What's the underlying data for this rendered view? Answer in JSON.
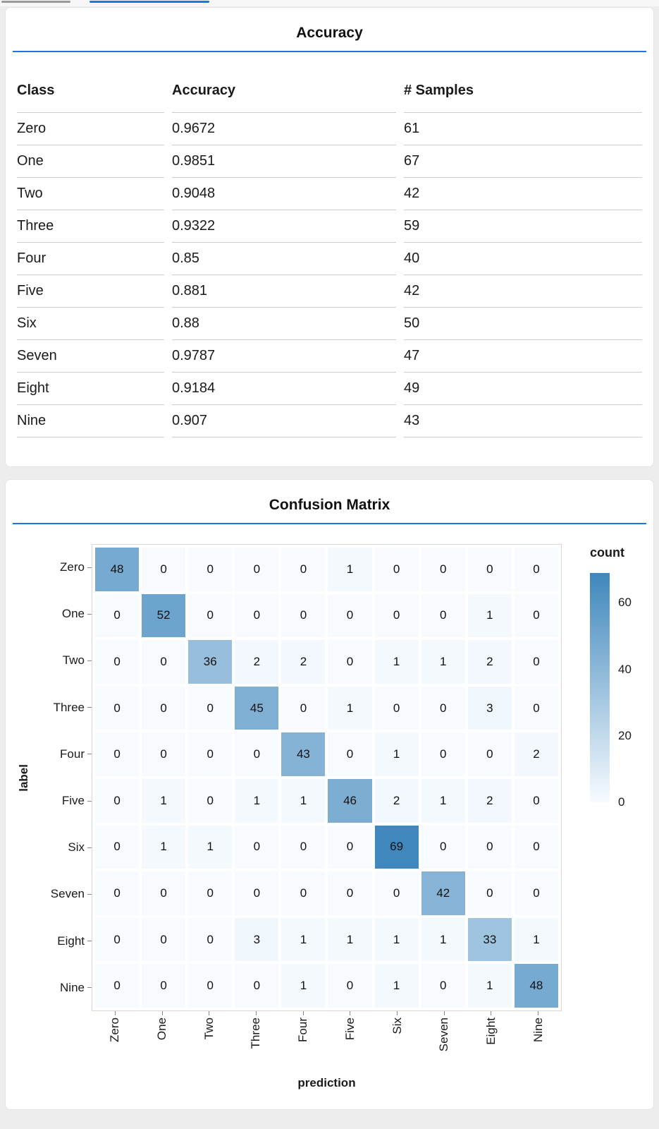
{
  "page": {
    "accent_color": "#1a73e8",
    "background_color": "#ededed"
  },
  "tabstrip": {
    "inactive_tab_color": "#9a9a9a",
    "active_tab_color": "#1a73e8"
  },
  "accuracy_card": {
    "title": "Accuracy",
    "table": {
      "columns": [
        "Class",
        "Accuracy",
        "# Samples"
      ],
      "rows": [
        [
          "Zero",
          "0.9672",
          "61"
        ],
        [
          "One",
          "0.9851",
          "67"
        ],
        [
          "Two",
          "0.9048",
          "42"
        ],
        [
          "Three",
          "0.9322",
          "59"
        ],
        [
          "Four",
          "0.85",
          "40"
        ],
        [
          "Five",
          "0.881",
          "42"
        ],
        [
          "Six",
          "0.88",
          "50"
        ],
        [
          "Seven",
          "0.9787",
          "47"
        ],
        [
          "Eight",
          "0.9184",
          "49"
        ],
        [
          "Nine",
          "0.907",
          "43"
        ]
      ]
    }
  },
  "confusion_card": {
    "title": "Confusion Matrix"
  },
  "chart_data": {
    "type": "heatmap",
    "title": "Confusion Matrix",
    "xlabel": "prediction",
    "ylabel": "label",
    "categories": [
      "Zero",
      "One",
      "Two",
      "Three",
      "Four",
      "Five",
      "Six",
      "Seven",
      "Eight",
      "Nine"
    ],
    "matrix": [
      [
        48,
        0,
        0,
        0,
        0,
        1,
        0,
        0,
        0,
        0
      ],
      [
        0,
        52,
        0,
        0,
        0,
        0,
        0,
        0,
        1,
        0
      ],
      [
        0,
        0,
        36,
        2,
        2,
        0,
        1,
        1,
        2,
        0
      ],
      [
        0,
        0,
        0,
        45,
        0,
        1,
        0,
        0,
        3,
        0
      ],
      [
        0,
        0,
        0,
        0,
        43,
        0,
        1,
        0,
        0,
        2
      ],
      [
        0,
        1,
        0,
        1,
        1,
        46,
        2,
        1,
        2,
        0
      ],
      [
        0,
        1,
        1,
        0,
        0,
        0,
        69,
        0,
        0,
        0
      ],
      [
        0,
        0,
        0,
        0,
        0,
        0,
        0,
        42,
        0,
        0
      ],
      [
        0,
        0,
        0,
        3,
        1,
        1,
        1,
        1,
        33,
        1
      ],
      [
        0,
        0,
        0,
        0,
        1,
        0,
        1,
        0,
        1,
        48
      ]
    ],
    "legend": {
      "title": "count",
      "ticks": [
        60,
        40,
        20,
        0
      ],
      "domain": [
        0,
        69
      ],
      "color_low": "#f7fbff",
      "color_high": "#3f87bc"
    },
    "grid": true,
    "legend_position": "right"
  }
}
